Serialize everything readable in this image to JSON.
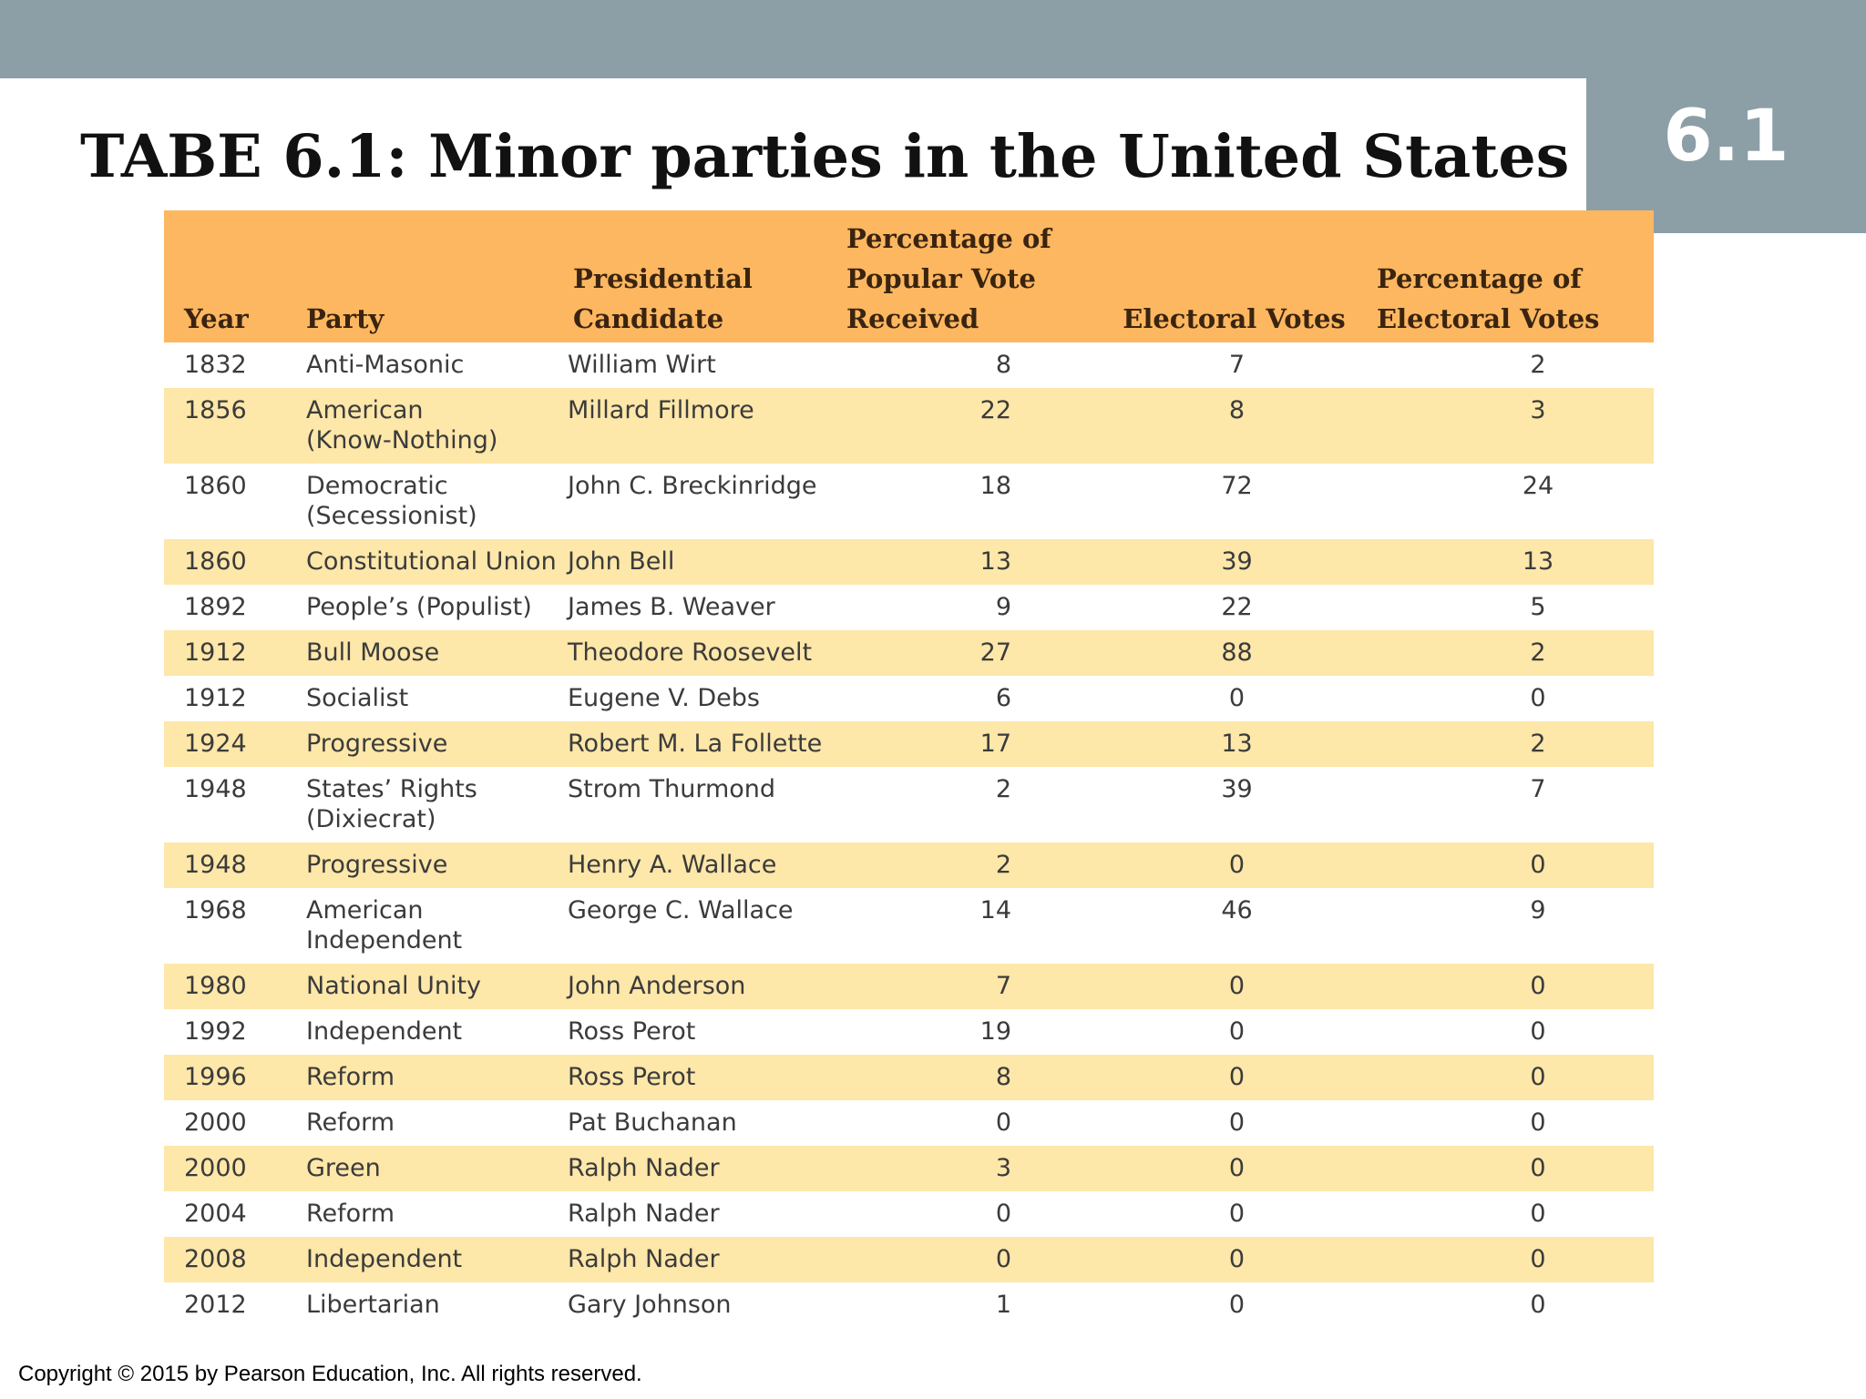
{
  "slide": {
    "title": "TABE 6.1: Minor parties in the United States",
    "badge": "6.1",
    "copyright": "Copyright © 2015 by Pearson Education, Inc. All rights reserved."
  },
  "colors": {
    "band": "#8c9fa7",
    "header": "#fdb760",
    "stripe": "#fde7a9"
  },
  "table": {
    "headers": {
      "year": "Year",
      "party": "Party",
      "candidate_l1": "Presidential",
      "candidate_l2": "Candidate",
      "popular_l1": "Percentage of",
      "popular_l2": "Popular Vote",
      "popular_l3": "Received",
      "electoral": "Electoral Votes",
      "pct_elec_l1": "Percentage of",
      "pct_elec_l2": "Electoral Votes"
    },
    "rows": [
      {
        "year": "1832",
        "party": "Anti-Masonic",
        "party2": "",
        "candidate": "William Wirt",
        "popular": "8",
        "electoral": "7",
        "pct": "2"
      },
      {
        "year": "1856",
        "party": "American",
        "party2": "(Know-Nothing)",
        "candidate": "Millard Fillmore",
        "popular": "22",
        "electoral": "8",
        "pct": "3"
      },
      {
        "year": "1860",
        "party": "Democratic",
        "party2": "(Secessionist)",
        "candidate": "John C. Breckinridge",
        "popular": "18",
        "electoral": "72",
        "pct": "24"
      },
      {
        "year": "1860",
        "party": "Constitutional Union",
        "party2": "",
        "candidate": "John Bell",
        "popular": "13",
        "electoral": "39",
        "pct": "13"
      },
      {
        "year": "1892",
        "party": "People’s (Populist)",
        "party2": "",
        "candidate": "James B. Weaver",
        "popular": "9",
        "electoral": "22",
        "pct": "5"
      },
      {
        "year": "1912",
        "party": "Bull Moose",
        "party2": "",
        "candidate": "Theodore Roosevelt",
        "popular": "27",
        "electoral": "88",
        "pct": "2"
      },
      {
        "year": "1912",
        "party": "Socialist",
        "party2": "",
        "candidate": "Eugene V. Debs",
        "popular": "6",
        "electoral": "0",
        "pct": "0"
      },
      {
        "year": "1924",
        "party": "Progressive",
        "party2": "",
        "candidate": "Robert M. La Follette",
        "popular": "17",
        "electoral": "13",
        "pct": "2"
      },
      {
        "year": "1948",
        "party": "States’ Rights",
        "party2": "(Dixiecrat)",
        "candidate": "Strom Thurmond",
        "popular": "2",
        "electoral": "39",
        "pct": "7"
      },
      {
        "year": "1948",
        "party": "Progressive",
        "party2": "",
        "candidate": "Henry A. Wallace",
        "popular": "2",
        "electoral": "0",
        "pct": "0"
      },
      {
        "year": "1968",
        "party": "American",
        "party2": "Independent",
        "candidate": "George C. Wallace",
        "popular": "14",
        "electoral": "46",
        "pct": "9"
      },
      {
        "year": "1980",
        "party": "National Unity",
        "party2": "",
        "candidate": "John Anderson",
        "popular": "7",
        "electoral": "0",
        "pct": "0"
      },
      {
        "year": "1992",
        "party": "Independent",
        "party2": "",
        "candidate": "Ross Perot",
        "popular": "19",
        "electoral": "0",
        "pct": "0"
      },
      {
        "year": "1996",
        "party": "Reform",
        "party2": "",
        "candidate": "Ross Perot",
        "popular": "8",
        "electoral": "0",
        "pct": "0"
      },
      {
        "year": "2000",
        "party": "Reform",
        "party2": "",
        "candidate": "Pat Buchanan",
        "popular": "0",
        "electoral": "0",
        "pct": "0"
      },
      {
        "year": "2000",
        "party": "Green",
        "party2": "",
        "candidate": "Ralph Nader",
        "popular": "3",
        "electoral": "0",
        "pct": "0"
      },
      {
        "year": "2004",
        "party": "Reform",
        "party2": "",
        "candidate": "Ralph Nader",
        "popular": "0",
        "electoral": "0",
        "pct": "0"
      },
      {
        "year": "2008",
        "party": "Independent",
        "party2": "",
        "candidate": "Ralph Nader",
        "popular": "0",
        "electoral": "0",
        "pct": "0"
      },
      {
        "year": "2012",
        "party": "Libertarian",
        "party2": "",
        "candidate": "Gary Johnson",
        "popular": "1",
        "electoral": "0",
        "pct": "0"
      }
    ]
  }
}
